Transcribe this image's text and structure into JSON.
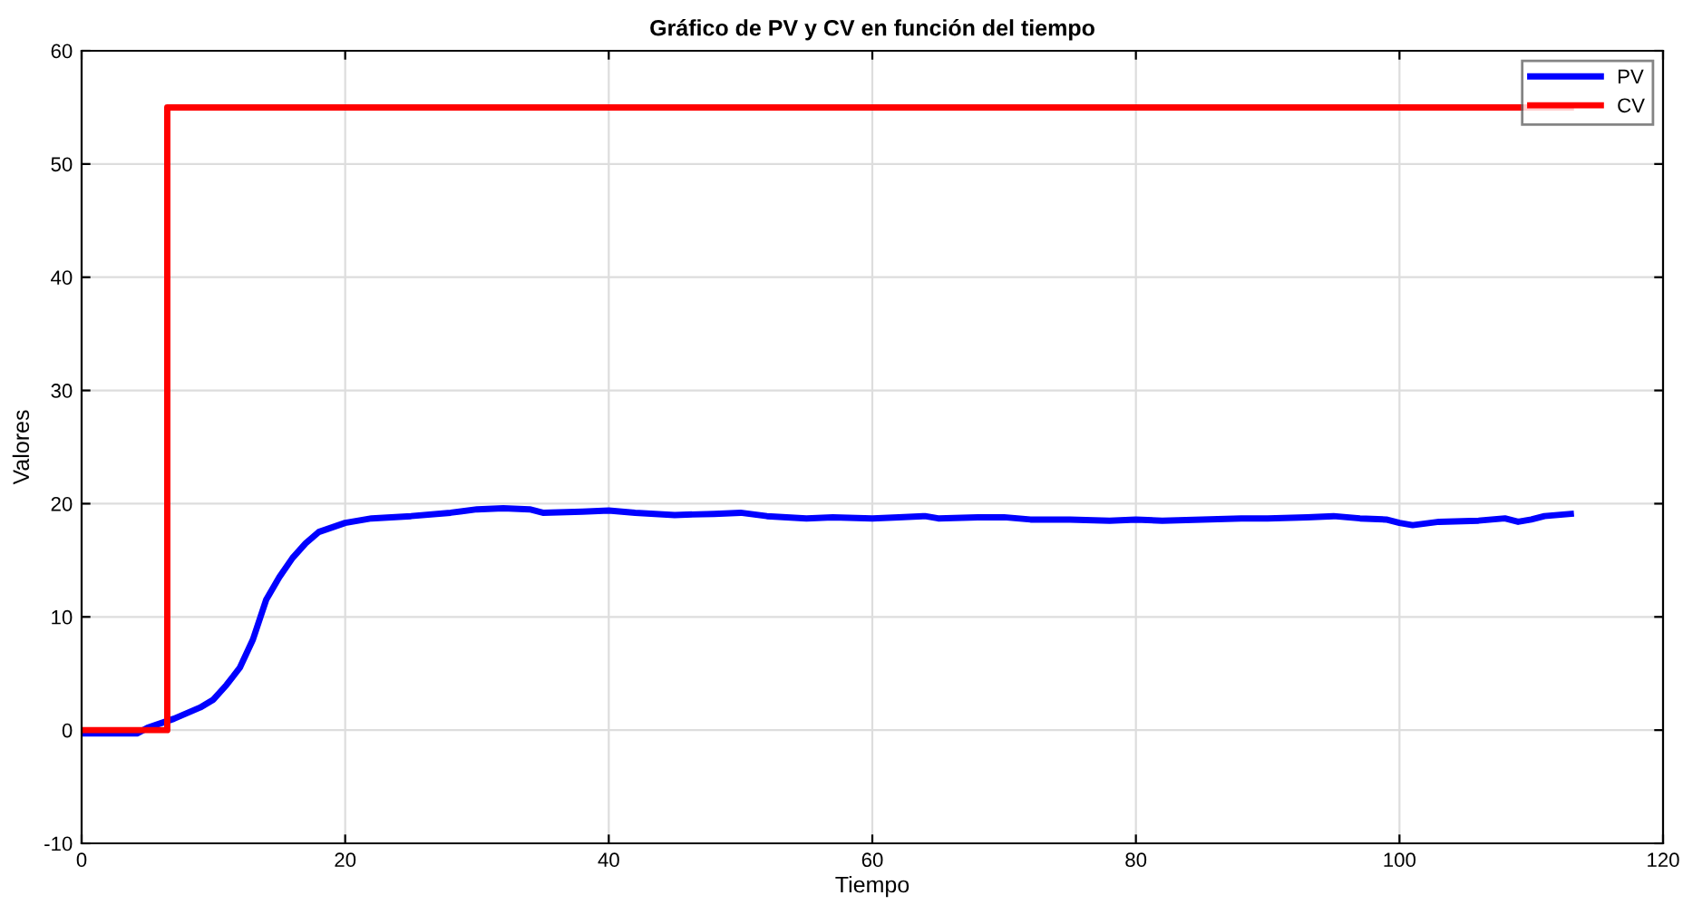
{
  "chart_data": {
    "type": "line",
    "title": "Gráfico de PV y CV en función del tiempo",
    "xlabel": "Tiempo",
    "ylabel": "Valores",
    "xlim": [
      0,
      120
    ],
    "xticks": [
      0,
      20,
      40,
      60,
      80,
      100,
      120
    ],
    "ylim": [
      -10,
      60
    ],
    "yticks": [
      -10,
      0,
      10,
      20,
      30,
      40,
      50,
      60
    ],
    "grid": true,
    "legend": "top right",
    "series": [
      {
        "name": "PV",
        "color": "#0000ff",
        "x": [
          0,
          4.2,
          5,
          7,
          9,
          10,
          11,
          12,
          13,
          14,
          15,
          16,
          17,
          18,
          20,
          22,
          25,
          28,
          30,
          32,
          34,
          35,
          38,
          40,
          42,
          45,
          48,
          50,
          52,
          55,
          57,
          60,
          62,
          64,
          65,
          68,
          70,
          72,
          75,
          78,
          80,
          82,
          85,
          88,
          90,
          93,
          95,
          97,
          99,
          100,
          101,
          103,
          106,
          108,
          109,
          110,
          111,
          113
        ],
        "values": [
          -0.3,
          -0.3,
          0.2,
          1.0,
          2.0,
          2.7,
          4.0,
          5.5,
          8,
          11.5,
          13.5,
          15.2,
          16.5,
          17.5,
          18.3,
          18.7,
          18.9,
          19.2,
          19.5,
          19.6,
          19.5,
          19.2,
          19.3,
          19.4,
          19.2,
          19.0,
          19.1,
          19.2,
          18.9,
          18.7,
          18.8,
          18.7,
          18.8,
          18.9,
          18.7,
          18.8,
          18.8,
          18.6,
          18.6,
          18.5,
          18.6,
          18.5,
          18.6,
          18.7,
          18.7,
          18.8,
          18.9,
          18.7,
          18.6,
          18.3,
          18.1,
          18.4,
          18.5,
          18.7,
          18.4,
          18.6,
          18.9,
          19.1
        ]
      },
      {
        "name": "CV",
        "color": "#ff0000",
        "type": "step",
        "x": [
          0,
          6.5,
          113
        ],
        "values": [
          0,
          55,
          55
        ]
      }
    ]
  }
}
